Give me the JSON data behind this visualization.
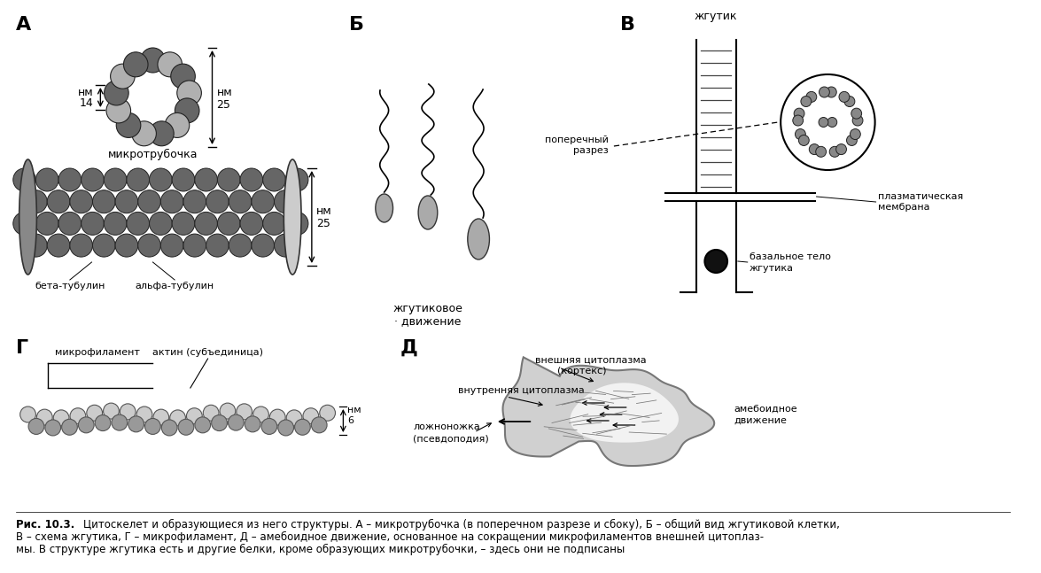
{
  "background_color": "#ffffff",
  "caption_bold": "Рис. 10.3.",
  "caption_text": "Цитоскелет и образующиеся из него структуры. А – микротрубочка (в поперечном разрезе и сбоку), Б – общий вид жгутиковой клетки,",
  "caption_line2": "В – схема жгутика, Г – микрофиламент, Д – амебоидное движение, основанное на сокращении микрофиламентов внешней цитоплаз-",
  "caption_line3": "мы. В структуре жгутика есть и другие белки, кроме образующих микротрубочки, – здесь они не подписаны",
  "dark_col": "#666666",
  "light_col": "#b0b0b0"
}
